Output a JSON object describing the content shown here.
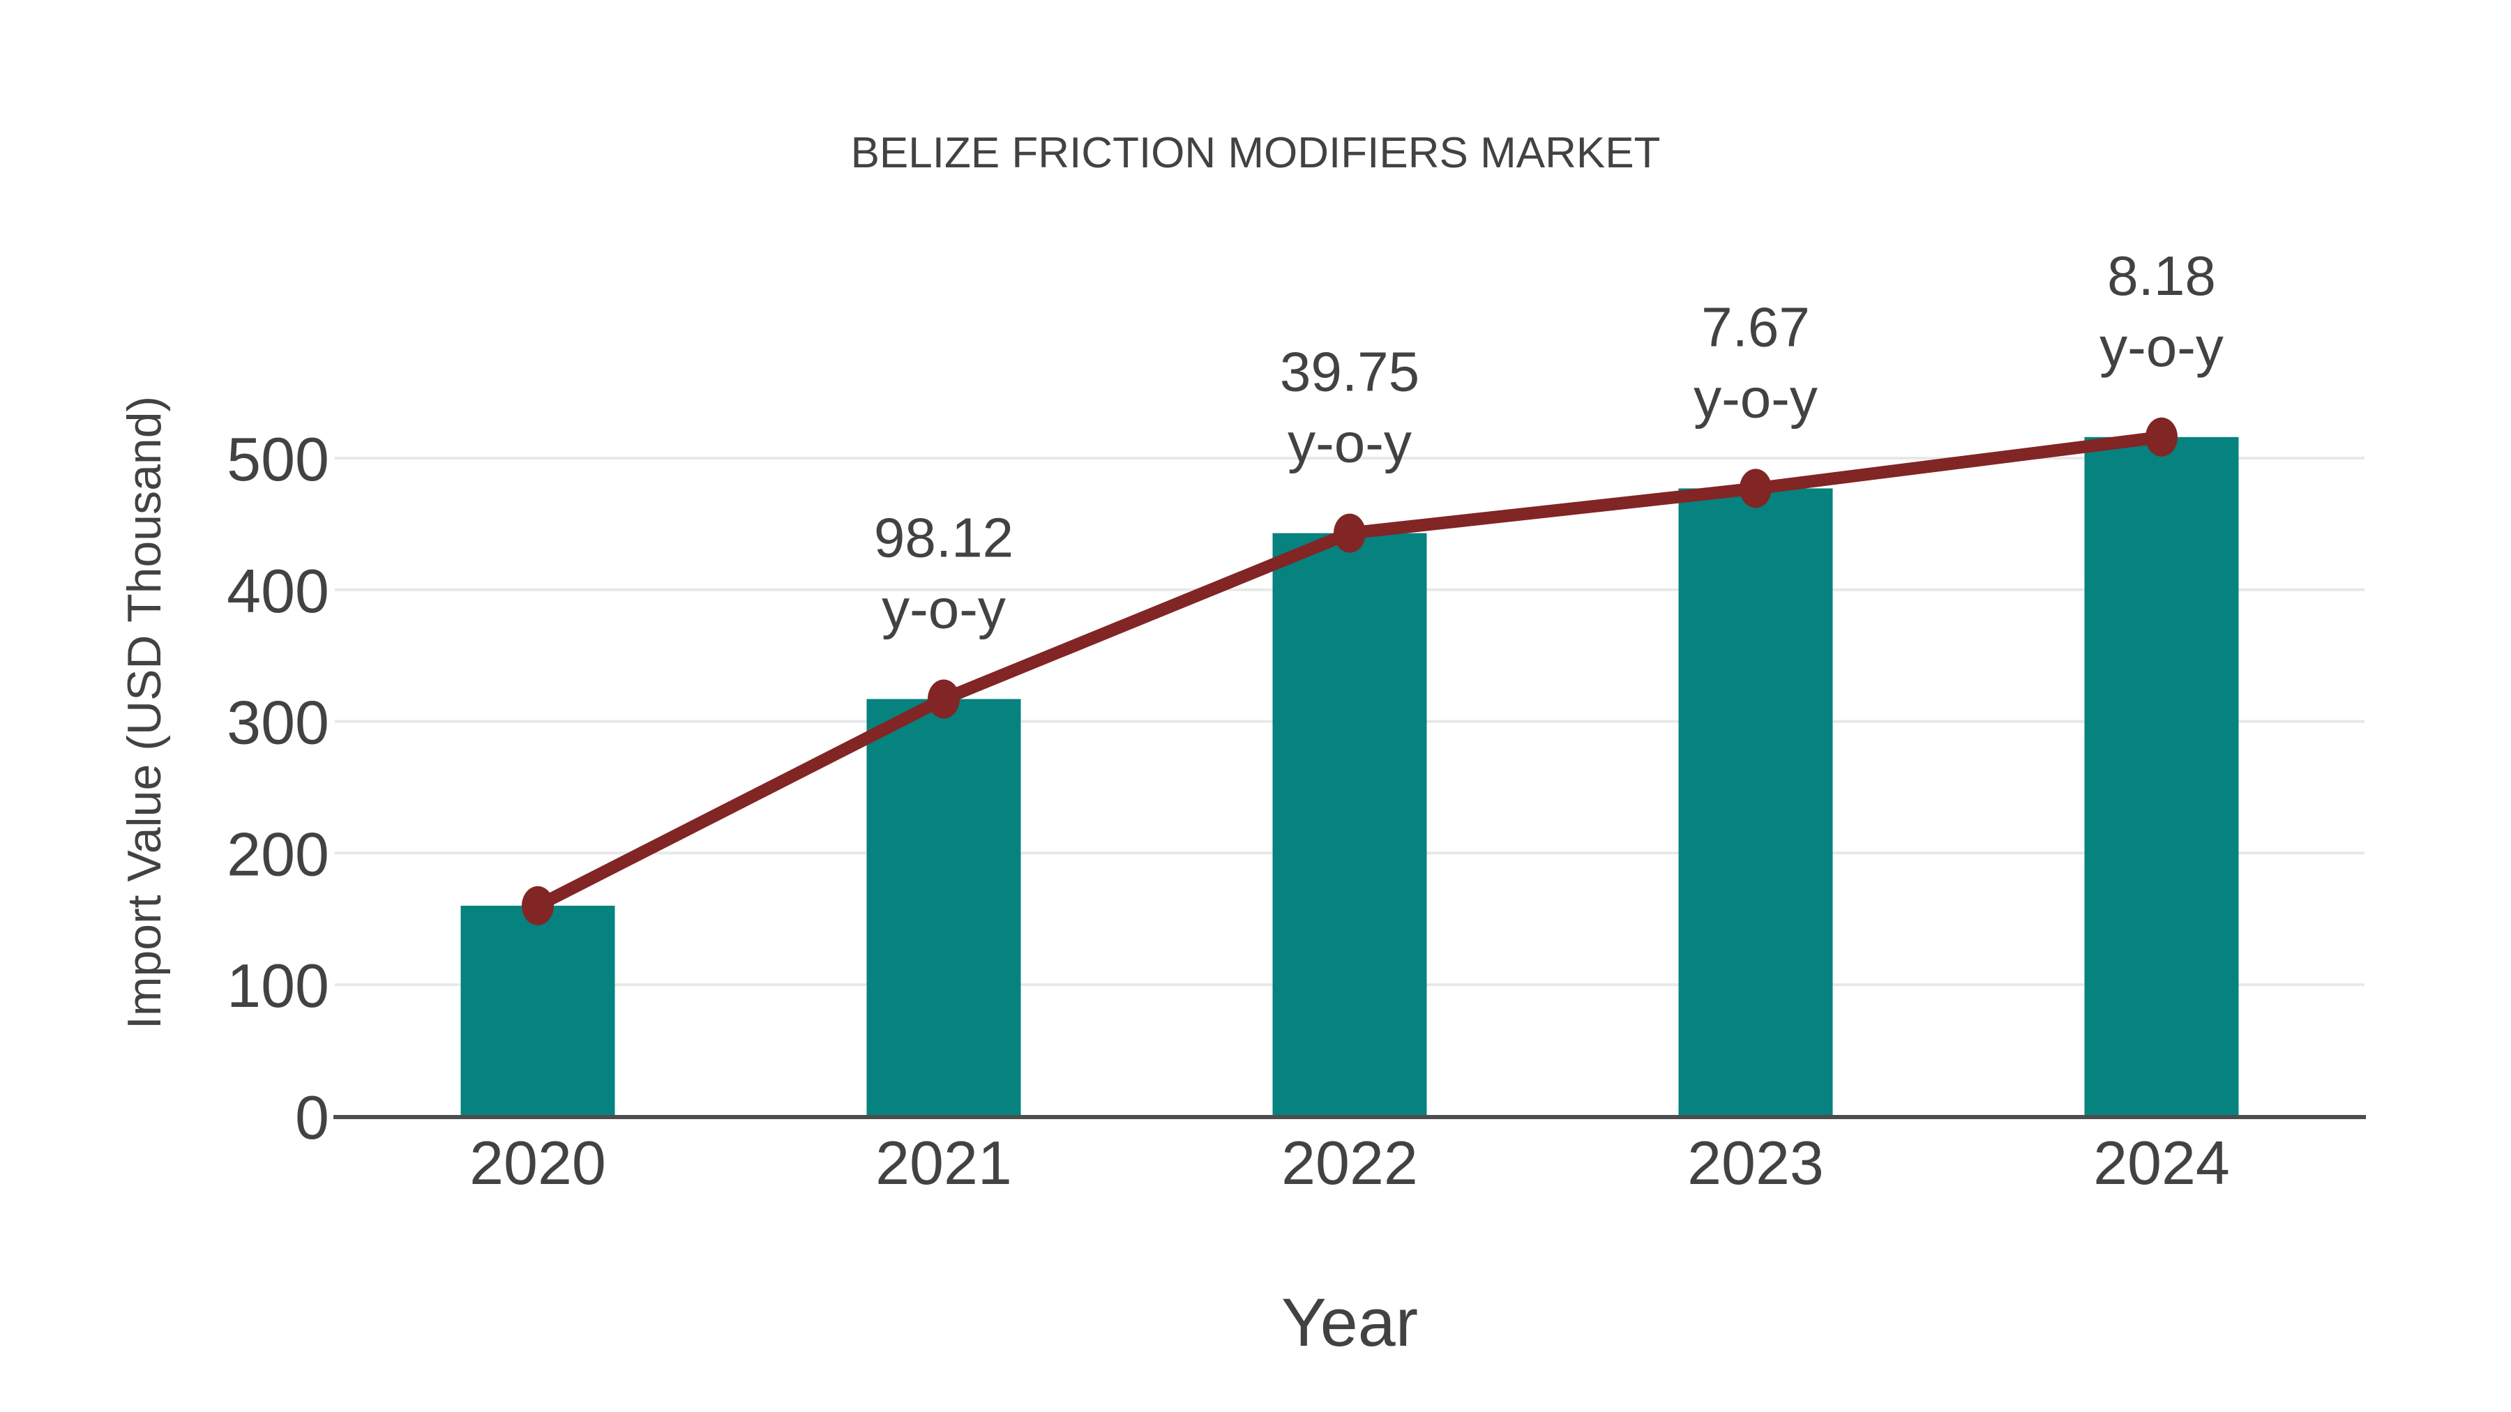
{
  "chart_data": {
    "type": "combo",
    "title": "BELIZE FRICTION MODIFIERS MARKET",
    "xlabel": "Year",
    "ylabel": "Import Value (USD Thousand)",
    "categories": [
      "2020",
      "2021",
      "2022",
      "2023",
      "2024"
    ],
    "series": [
      {
        "name": "Import Value",
        "type": "bar",
        "color": "#06827F",
        "values": [
          160,
          317,
          443,
          477,
          516
        ]
      },
      {
        "name": "Year-over-year growth",
        "type": "line",
        "color": "#822525",
        "values": [
          160,
          317,
          443,
          477,
          516
        ],
        "growth_pct": [
          null,
          98.12,
          39.75,
          7.67,
          8.18
        ],
        "growth_suffix": "y-o-y"
      }
    ],
    "yticks": [
      0,
      100,
      200,
      300,
      400,
      500
    ],
    "ylim": [
      0,
      530
    ],
    "grid": true,
    "legend": "none",
    "colors": {
      "grid": "#e8e8e8",
      "axis": "#4d4d4d",
      "text": "#424242",
      "background": "#ffffff"
    }
  }
}
